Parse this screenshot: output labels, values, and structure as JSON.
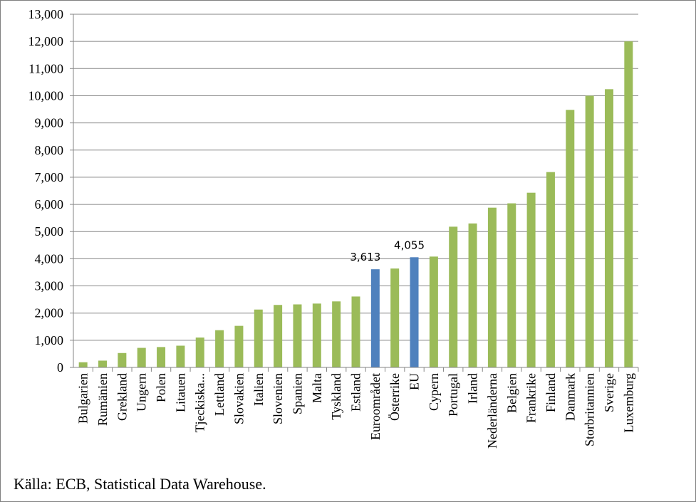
{
  "chart_data": {
    "type": "bar",
    "title": "",
    "xlabel": "",
    "ylabel": "",
    "ylim": [
      0,
      13000
    ],
    "yticks": [
      "0",
      "1,000",
      "2,000",
      "3,000",
      "4,000",
      "5,000",
      "6,000",
      "7,000",
      "8,000",
      "9,000",
      "10,000",
      "11,000",
      "12,000",
      "13,000"
    ],
    "grid": true,
    "categories": [
      "Bulgarien",
      "Rumänien",
      "Grekland",
      "Ungern",
      "Polen",
      "Litauen",
      "Tjeckiska...",
      "Lettland",
      "Slovakien",
      "Italien",
      "Slovenien",
      "Spanien",
      "Malta",
      "Tyskland",
      "Estland",
      "Euroområdet",
      "Österrike",
      "EU",
      "Cypern",
      "Portugal",
      "Irland",
      "Nederländerna",
      "Belgien",
      "Frankrike",
      "Finland",
      "Danmark",
      "Storbritannien",
      "Sverige",
      "Luxemburg"
    ],
    "values": [
      190,
      250,
      530,
      720,
      750,
      800,
      1100,
      1370,
      1530,
      2130,
      2300,
      2320,
      2350,
      2430,
      2610,
      3613,
      3640,
      4055,
      4080,
      5180,
      5300,
      5880,
      6040,
      6430,
      7190,
      9480,
      10000,
      10240,
      12000
    ],
    "highlight": [
      "Euroområdet",
      "EU"
    ],
    "data_labels": {
      "Euroområdet": "3,613",
      "EU": "4,055"
    },
    "colors": {
      "default": "#9bbb59",
      "highlight": "#4f81bd",
      "grid": "#868686"
    }
  },
  "source": "Källa: ECB, Statistical Data Warehouse."
}
